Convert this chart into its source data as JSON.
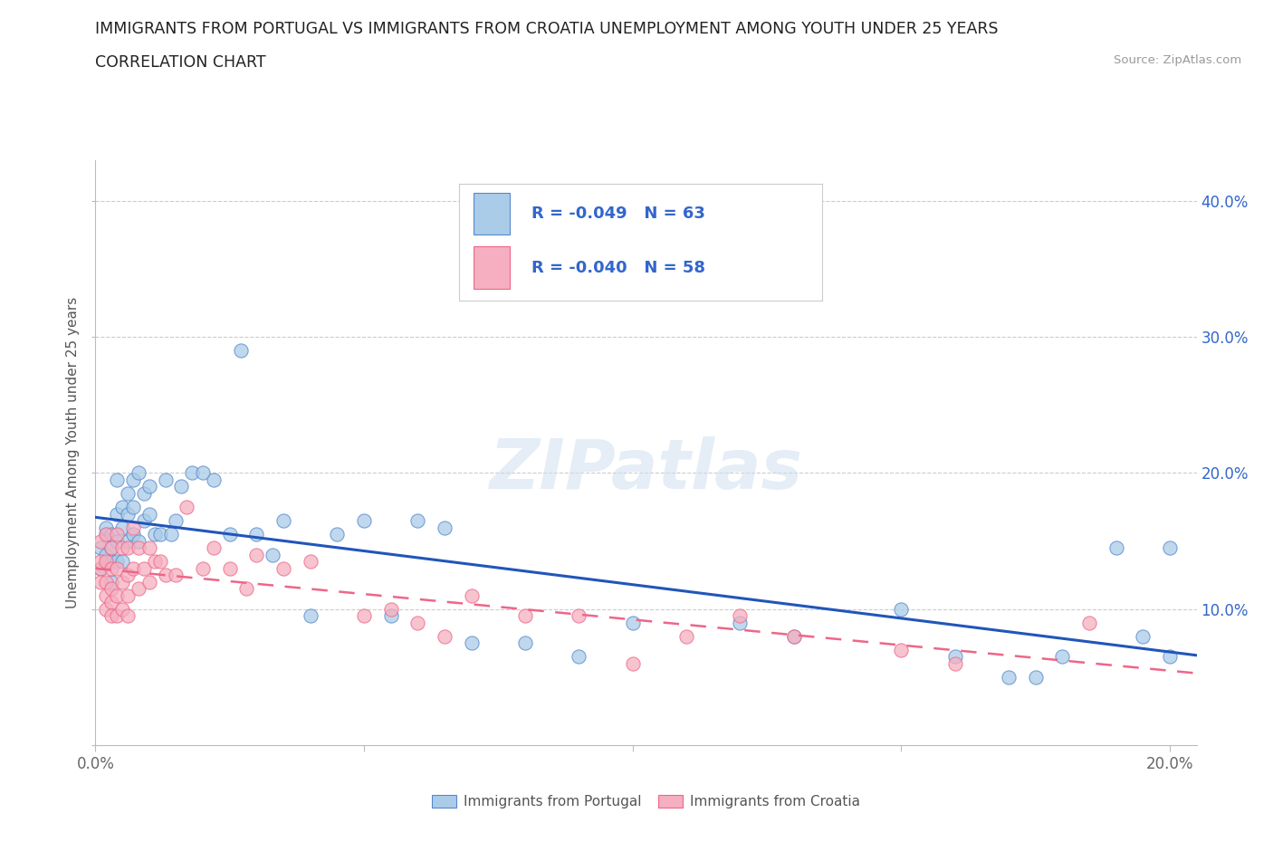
{
  "title_line1": "IMMIGRANTS FROM PORTUGAL VS IMMIGRANTS FROM CROATIA UNEMPLOYMENT AMONG YOUTH UNDER 25 YEARS",
  "title_line2": "CORRELATION CHART",
  "source_text": "Source: ZipAtlas.com",
  "ylabel": "Unemployment Among Youth under 25 years",
  "xlim": [
    0.0,
    0.205
  ],
  "ylim": [
    0.0,
    0.43
  ],
  "x_ticks": [
    0.0,
    0.05,
    0.1,
    0.15,
    0.2
  ],
  "y_ticks": [
    0.0,
    0.1,
    0.2,
    0.3,
    0.4
  ],
  "portugal_color": "#aacce8",
  "croatia_color": "#f5afc0",
  "portugal_edge_color": "#5588cc",
  "croatia_edge_color": "#ee6688",
  "portugal_line_color": "#2255bb",
  "croatia_line_color": "#ee6688",
  "legend_text_color": "#3366cc",
  "watermark_text": "ZIPatlas",
  "portugal_R": -0.049,
  "portugal_N": 63,
  "croatia_R": -0.04,
  "croatia_N": 58,
  "portugal_scatter_x": [
    0.001,
    0.001,
    0.002,
    0.002,
    0.002,
    0.003,
    0.003,
    0.003,
    0.003,
    0.004,
    0.004,
    0.004,
    0.004,
    0.005,
    0.005,
    0.005,
    0.006,
    0.006,
    0.006,
    0.007,
    0.007,
    0.007,
    0.008,
    0.008,
    0.009,
    0.009,
    0.01,
    0.01,
    0.011,
    0.012,
    0.013,
    0.014,
    0.015,
    0.016,
    0.018,
    0.02,
    0.022,
    0.025,
    0.027,
    0.03,
    0.033,
    0.035,
    0.04,
    0.045,
    0.05,
    0.055,
    0.06,
    0.065,
    0.07,
    0.08,
    0.09,
    0.1,
    0.12,
    0.13,
    0.15,
    0.16,
    0.17,
    0.175,
    0.18,
    0.19,
    0.195,
    0.2,
    0.2
  ],
  "portugal_scatter_y": [
    0.145,
    0.13,
    0.155,
    0.14,
    0.16,
    0.12,
    0.145,
    0.155,
    0.135,
    0.15,
    0.17,
    0.195,
    0.135,
    0.16,
    0.175,
    0.135,
    0.15,
    0.17,
    0.185,
    0.155,
    0.195,
    0.175,
    0.15,
    0.2,
    0.165,
    0.185,
    0.19,
    0.17,
    0.155,
    0.155,
    0.195,
    0.155,
    0.165,
    0.19,
    0.2,
    0.2,
    0.195,
    0.155,
    0.29,
    0.155,
    0.14,
    0.165,
    0.095,
    0.155,
    0.165,
    0.095,
    0.165,
    0.16,
    0.075,
    0.075,
    0.065,
    0.09,
    0.09,
    0.08,
    0.1,
    0.065,
    0.05,
    0.05,
    0.065,
    0.145,
    0.08,
    0.065,
    0.145
  ],
  "croatia_scatter_x": [
    0.001,
    0.001,
    0.001,
    0.001,
    0.002,
    0.002,
    0.002,
    0.002,
    0.002,
    0.003,
    0.003,
    0.003,
    0.003,
    0.003,
    0.004,
    0.004,
    0.004,
    0.004,
    0.005,
    0.005,
    0.005,
    0.006,
    0.006,
    0.006,
    0.006,
    0.007,
    0.007,
    0.008,
    0.008,
    0.009,
    0.01,
    0.01,
    0.011,
    0.012,
    0.013,
    0.015,
    0.017,
    0.02,
    0.022,
    0.025,
    0.028,
    0.03,
    0.035,
    0.04,
    0.05,
    0.055,
    0.06,
    0.065,
    0.07,
    0.08,
    0.09,
    0.1,
    0.11,
    0.12,
    0.13,
    0.15,
    0.16,
    0.185
  ],
  "croatia_scatter_y": [
    0.13,
    0.15,
    0.12,
    0.135,
    0.155,
    0.135,
    0.12,
    0.11,
    0.1,
    0.145,
    0.13,
    0.115,
    0.105,
    0.095,
    0.155,
    0.13,
    0.11,
    0.095,
    0.145,
    0.12,
    0.1,
    0.145,
    0.125,
    0.11,
    0.095,
    0.16,
    0.13,
    0.145,
    0.115,
    0.13,
    0.145,
    0.12,
    0.135,
    0.135,
    0.125,
    0.125,
    0.175,
    0.13,
    0.145,
    0.13,
    0.115,
    0.14,
    0.13,
    0.135,
    0.095,
    0.1,
    0.09,
    0.08,
    0.11,
    0.095,
    0.095,
    0.06,
    0.08,
    0.095,
    0.08,
    0.07,
    0.06,
    0.09
  ]
}
